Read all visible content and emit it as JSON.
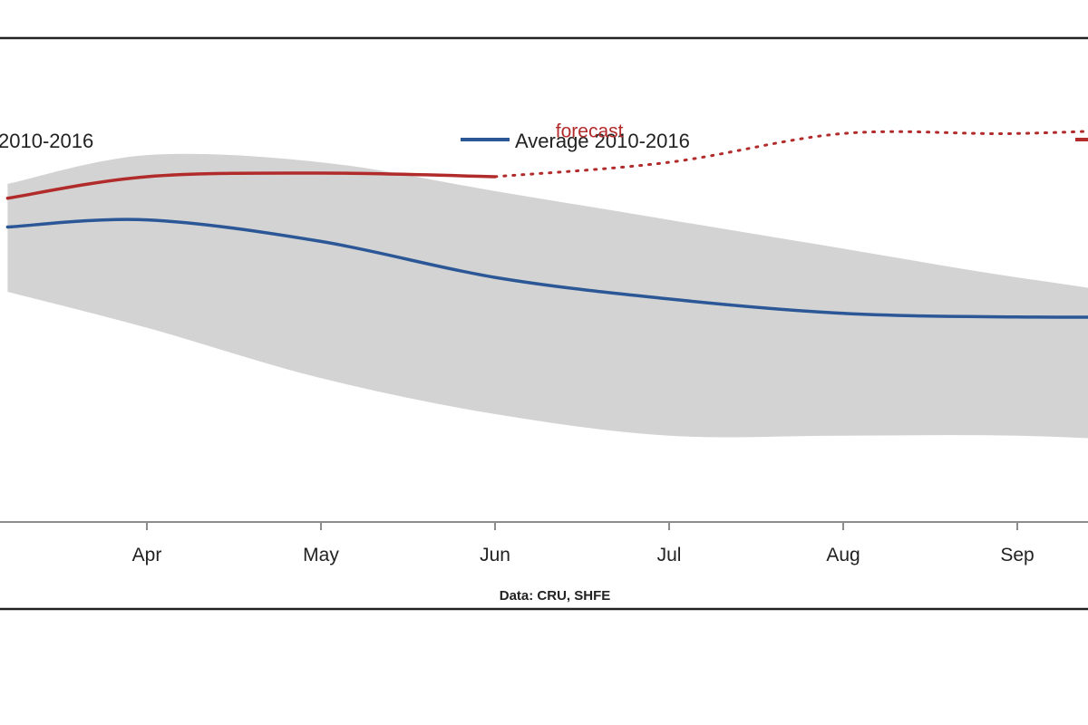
{
  "chart_data": {
    "type": "line",
    "categories": [
      "Apr",
      "May",
      "Jun",
      "Jul",
      "Aug",
      "Sep"
    ],
    "x_visible": [
      2.2,
      3,
      4,
      5,
      6,
      7,
      8,
      9,
      9.4
    ],
    "band": {
      "label": "2010-2016",
      "upper": [
        102,
        106,
        105,
        101,
        97,
        93,
        89,
        86,
        88
      ],
      "lower": [
        87,
        82,
        75,
        70,
        67,
        67,
        67,
        66,
        66
      ]
    },
    "series": [
      {
        "name": "Average 2010-2016",
        "color": "#2b5797",
        "x": [
          2.2,
          3,
          4,
          5,
          6,
          7,
          8,
          9,
          9.4
        ],
        "values": [
          96,
          97,
          94,
          89,
          86,
          84,
          83.5,
          83.5,
          83.5
        ]
      },
      {
        "name": "",
        "color": "#b22b2b",
        "x": [
          2.2,
          3,
          4,
          5
        ],
        "values": [
          100,
          103,
          103.5,
          103
        ]
      },
      {
        "name": "",
        "color": "#b22b2b",
        "style": "dotted",
        "x": [
          5,
          6,
          7,
          8,
          9,
          9.4
        ],
        "values": [
          103,
          105,
          109,
          109,
          110,
          111
        ]
      }
    ],
    "annotations": [
      {
        "text": "forecast",
        "x": 5.4,
        "y": 110
      }
    ],
    "legend": [
      {
        "label": "2010-2016",
        "kind": "band"
      },
      {
        "label": "Average 2010-2016",
        "kind": "line",
        "color": "#2b5797"
      },
      {
        "label": "",
        "kind": "line",
        "color": "#b22b2b"
      }
    ],
    "legend_position": "top",
    "source": "Data: CRU, SHFE",
    "ylim": [
      55,
      120
    ],
    "grid": false,
    "colors": {
      "band": "#d3d3d3",
      "average": "#2b5797",
      "actual": "#b22b2b",
      "frame": "#222222"
    }
  }
}
